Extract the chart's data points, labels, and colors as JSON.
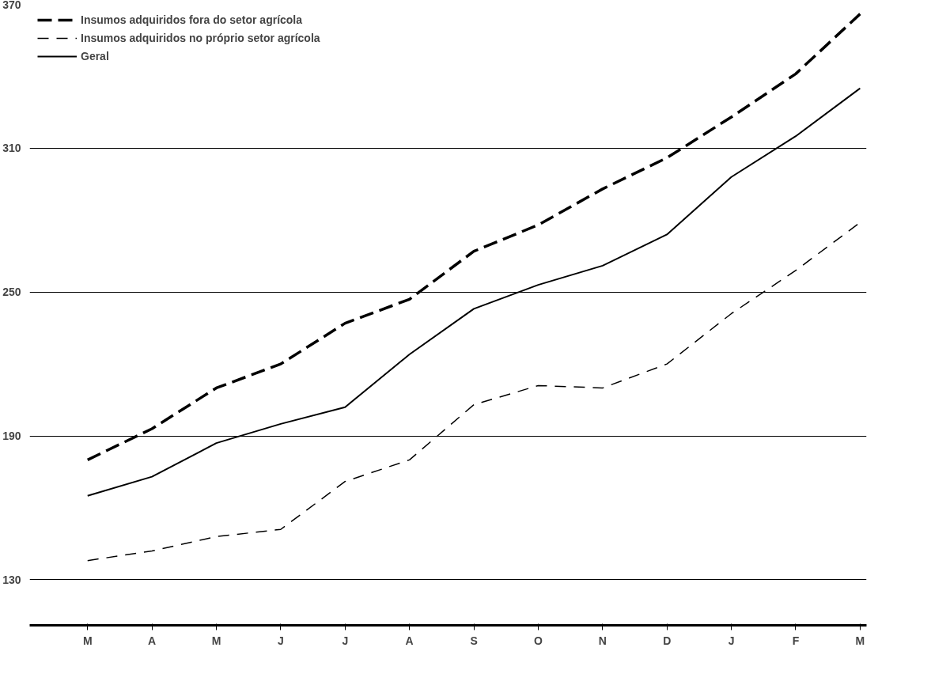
{
  "chart_data": {
    "type": "line",
    "categories": [
      "M",
      "A",
      "M",
      "J",
      "J",
      "A",
      "S",
      "O",
      "N",
      "D",
      "J",
      "F",
      "M"
    ],
    "ylim": [
      111,
      370
    ],
    "yticks": [
      130,
      190,
      250,
      310,
      370
    ],
    "grid": "y",
    "legend": "top left",
    "marker": "none",
    "series": [
      {
        "name": "Insumos adquiridos fora do setor agrícola",
        "color": "#000000",
        "line_style": "dashed",
        "values": [
          180,
          193,
          210,
          220,
          237,
          247,
          267,
          278,
          293,
          306,
          323,
          341,
          366
        ]
      },
      {
        "name": "Insumos adquiridos no próprio setor agrícola",
        "color": "#000000",
        "line_style": "dashed",
        "values": [
          138,
          142,
          148,
          151,
          171,
          180,
          203,
          211,
          210,
          220,
          241,
          259,
          279
        ]
      },
      {
        "name": "Geral",
        "color": "#000000",
        "line_style": "solid",
        "values": [
          165,
          173,
          187,
          195,
          202,
          224,
          243,
          253,
          261,
          274,
          298,
          315,
          335
        ]
      }
    ]
  }
}
